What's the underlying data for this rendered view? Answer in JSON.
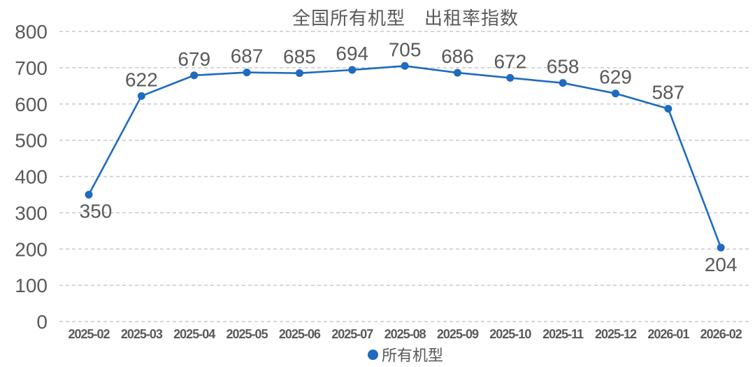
{
  "chart_data": {
    "type": "line",
    "title": "全国所有机型　出租率指数",
    "categories": [
      "2025-02",
      "2025-03",
      "2025-04",
      "2025-05",
      "2025-06",
      "2025-07",
      "2025-08",
      "2025-09",
      "2025-10",
      "2025-11",
      "2025-12",
      "2026-01",
      "2026-02"
    ],
    "series": [
      {
        "name": "所有机型",
        "values": [
          350,
          622,
          679,
          687,
          685,
          694,
          705,
          686,
          672,
          658,
          629,
          587,
          204
        ]
      }
    ],
    "ylim": [
      0,
      800
    ],
    "ytick_step": 100,
    "yticks": [
      0,
      100,
      200,
      300,
      400,
      500,
      600,
      700,
      800
    ],
    "grid": "dashed horizontal",
    "legend_position": "bottom-center",
    "colors": {
      "line": "#1e6bbf",
      "marker": "#1e6bbf",
      "grid": "#c9c9c9",
      "text": "#595959"
    },
    "legend": {
      "marker_icon": "circle",
      "label": "所有机型"
    }
  }
}
